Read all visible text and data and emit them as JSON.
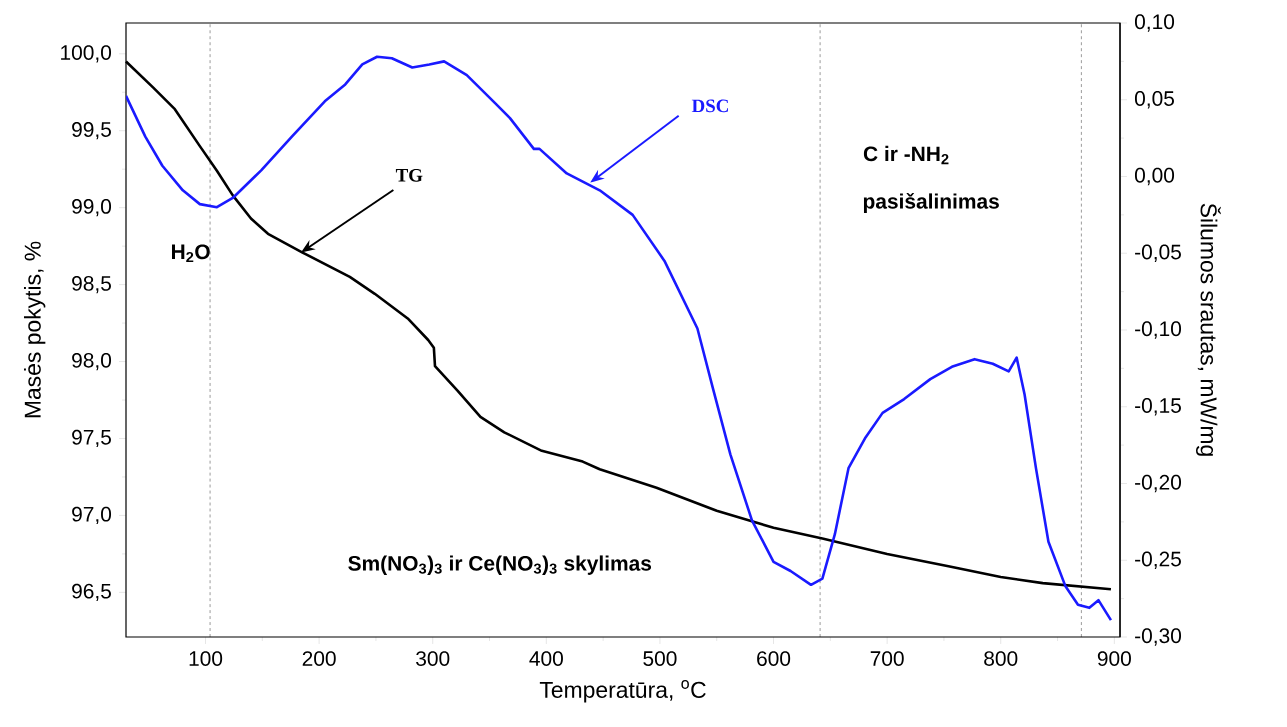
{
  "chart_data": {
    "type": "line",
    "xlabel": "Temperatūra, $^{o}$C",
    "ylabel": "Masės pokytis, %",
    "y2label": "Šilumos srautas, mW/mg",
    "xlim": [
      30,
      905
    ],
    "xticks": [
      100,
      200,
      300,
      400,
      500,
      600,
      700,
      800,
      900
    ],
    "ylim": [
      96.21,
      100.2
    ],
    "yticks": [
      {
        "value": 96.5,
        "label": "96,5"
      },
      {
        "value": 97,
        "label": "97,0"
      },
      {
        "value": 97.5,
        "label": "97,5"
      },
      {
        "value": 98,
        "label": "98,0"
      },
      {
        "value": 98.5,
        "label": "98,5"
      },
      {
        "value": 99,
        "label": "99,0"
      },
      {
        "value": 99.5,
        "label": "99,5"
      },
      {
        "value": 100,
        "label": "100,0"
      }
    ],
    "y2lim": [
      -0.3,
      0.1
    ],
    "y2ticks": [
      {
        "value": -0.3,
        "label": "-0,30"
      },
      {
        "value": -0.25,
        "label": "-0,25"
      },
      {
        "value": -0.2,
        "label": "-0,20"
      },
      {
        "value": -0.15,
        "label": "-0,15"
      },
      {
        "value": -0.1,
        "label": "-0,10"
      },
      {
        "value": -0.05,
        "label": "-0,05"
      },
      {
        "value": 0,
        "label": "0,00"
      },
      {
        "value": 0.05,
        "label": "0,05"
      },
      {
        "value": 0.1,
        "label": "0,10"
      }
    ],
    "series": [
      {
        "name": "TG",
        "color": "#000000",
        "x": [
          30,
          54,
          73,
          95,
          110,
          124,
          140,
          155,
          185,
          227,
          249,
          278,
          296,
          301,
          302,
          322,
          342,
          363,
          396,
          432,
          447,
          497,
          550,
          600,
          643,
          700,
          754,
          800,
          837,
          897
        ],
        "values": [
          99.95,
          99.78,
          99.64,
          99.4,
          99.24,
          99.08,
          98.93,
          98.83,
          98.71,
          98.55,
          98.44,
          98.28,
          98.14,
          98.09,
          97.97,
          97.81,
          97.64,
          97.54,
          97.42,
          97.35,
          97.3,
          97.18,
          97.03,
          96.92,
          96.85,
          96.75,
          96.67,
          96.6,
          96.56,
          96.52
        ]
      },
      {
        "name": "DSC",
        "color": "#1a1aff",
        "axis": "y2",
        "x": [
          30,
          47,
          62,
          80,
          95,
          110,
          124,
          149,
          176,
          205,
          223,
          238,
          251,
          264,
          282,
          297,
          310,
          330,
          356,
          368,
          389,
          394,
          418,
          447,
          476,
          504,
          533,
          547,
          562,
          581,
          600,
          615,
          633,
          643,
          654,
          666,
          681,
          696,
          715,
          738,
          757,
          777,
          793,
          807,
          814,
          821,
          831,
          842,
          857,
          868,
          878,
          886,
          897
        ],
        "values": [
          0.0525,
          0.026,
          0.007,
          -0.009,
          -0.018,
          -0.02,
          -0.014,
          0.004,
          0.026,
          0.049,
          0.06,
          0.073,
          0.078,
          0.077,
          0.071,
          0.073,
          0.075,
          0.066,
          0.047,
          0.038,
          0.018,
          0.018,
          0.002,
          -0.009,
          -0.025,
          -0.055,
          -0.099,
          -0.139,
          -0.181,
          -0.224,
          -0.251,
          -0.257,
          -0.266,
          -0.262,
          -0.233,
          -0.19,
          -0.17,
          -0.154,
          -0.145,
          -0.132,
          -0.124,
          -0.119,
          -0.122,
          -0.127,
          -0.118,
          -0.142,
          -0.19,
          -0.238,
          -0.267,
          -0.279,
          -0.281,
          -0.276,
          -0.289
        ]
      }
    ],
    "ref_lines": [
      {
        "axis": "x",
        "value": 104,
        "line_style": "dashed"
      },
      {
        "axis": "x",
        "value": 641,
        "line_style": "dashed"
      },
      {
        "axis": "x",
        "value": 871,
        "line_style": "dashed"
      }
    ],
    "annotations": [
      "H$_{2}$O",
      "C ir -NH$_{2}$",
      "pasišalinimas",
      "Sm(NO$_{3}$)$_{3}$ ir Ce(NO$_{3}$)$_{3}$ skylimas"
    ]
  }
}
